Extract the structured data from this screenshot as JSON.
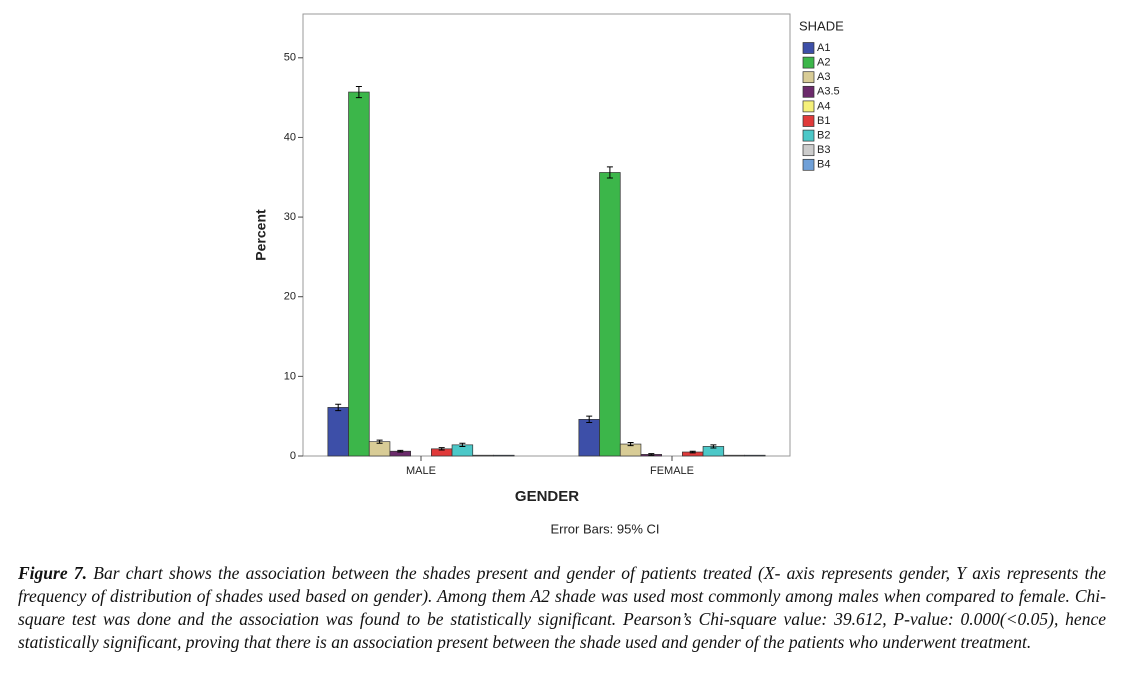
{
  "chart_data": {
    "type": "bar",
    "categories": [
      "MALE",
      "FEMALE"
    ],
    "series": [
      {
        "name": "A1",
        "color": "#3d4fa8",
        "values": [
          6.1,
          4.6
        ],
        "errors": [
          0.4,
          0.4
        ]
      },
      {
        "name": "A2",
        "color": "#3cb64a",
        "values": [
          45.7,
          35.6
        ],
        "errors": [
          0.7,
          0.7
        ]
      },
      {
        "name": "A3",
        "color": "#d8cc96",
        "values": [
          1.8,
          1.5
        ],
        "errors": [
          0.2,
          0.2
        ]
      },
      {
        "name": "A3.5",
        "color": "#6b2a6b",
        "values": [
          0.6,
          0.2
        ],
        "errors": [
          0.1,
          0.1
        ]
      },
      {
        "name": "A4",
        "color": "#f5f07a",
        "values": [
          0,
          0
        ],
        "errors": [
          0,
          0
        ]
      },
      {
        "name": "B1",
        "color": "#e03a3a",
        "values": [
          0.9,
          0.5
        ],
        "errors": [
          0.15,
          0.1
        ]
      },
      {
        "name": "B2",
        "color": "#4cc8c8",
        "values": [
          1.4,
          1.2
        ],
        "errors": [
          0.2,
          0.2
        ]
      },
      {
        "name": "B3",
        "color": "#cccccc",
        "values": [
          0.1,
          0.1
        ],
        "errors": [
          0,
          0
        ]
      },
      {
        "name": "B4",
        "color": "#6fa0d8",
        "values": [
          0.1,
          0.1
        ],
        "errors": [
          0,
          0
        ]
      }
    ],
    "ylim": [
      0,
      55.5
    ],
    "yticks": [
      0,
      10,
      20,
      30,
      40,
      50
    ],
    "y_label": "Percent",
    "x_label": "GENDER",
    "legend_title": "SHADE",
    "note": "Error Bars: 95% CI"
  },
  "caption": {
    "label": "Figure 7.",
    "text": "Bar chart shows the association between the shades present and gender of patients treated (X- axis represents gender, Y axis represents the frequency of distribution of shades used based on gender). Among them A2 shade was used most commonly among males when compared to female. Chi-square test was done and the association was found to be statistically significant. Pearson’s Chi-square value: 39.612, P-value: 0.000(<0.05), hence statistically significant, proving that there is an association present between the shade used and gender of the patients who underwent treatment."
  }
}
